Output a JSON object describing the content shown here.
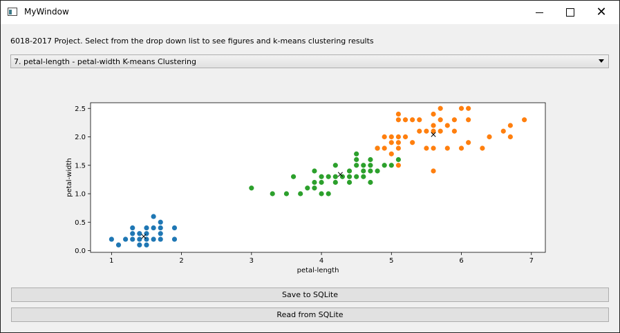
{
  "window": {
    "title": "MyWindow",
    "icon": "app-window-icon"
  },
  "instruction": "6018-2017 Project. Select from the drop down list to see figures and k-means clustering results",
  "dropdown": {
    "selected": "7. petal-length - petal-width K-means Clustering"
  },
  "buttons": {
    "save": "Save to SQLite",
    "read": "Read from SQLite"
  },
  "chart_data": {
    "type": "scatter",
    "xlabel": "petal-length",
    "ylabel": "petal-width",
    "xlim": [
      0.7,
      7.2
    ],
    "ylim": [
      -0.03,
      2.6
    ],
    "xticks": [
      1,
      2,
      3,
      4,
      5,
      6,
      7
    ],
    "yticks": [
      0.0,
      0.5,
      1.0,
      1.5,
      2.0,
      2.5
    ],
    "xtick_labels": [
      "1",
      "2",
      "3",
      "4",
      "5",
      "6",
      "7"
    ],
    "ytick_labels": [
      "0.0",
      "0.5",
      "1.0",
      "1.5",
      "2.0",
      "2.5"
    ],
    "grid": false,
    "series": [
      {
        "color": "#1f77b4",
        "points": [
          [
            1.0,
            0.2
          ],
          [
            1.1,
            0.1
          ],
          [
            1.2,
            0.2
          ],
          [
            1.3,
            0.2
          ],
          [
            1.3,
            0.3
          ],
          [
            1.3,
            0.4
          ],
          [
            1.4,
            0.1
          ],
          [
            1.4,
            0.2
          ],
          [
            1.4,
            0.3
          ],
          [
            1.5,
            0.1
          ],
          [
            1.5,
            0.2
          ],
          [
            1.5,
            0.3
          ],
          [
            1.5,
            0.4
          ],
          [
            1.6,
            0.2
          ],
          [
            1.6,
            0.4
          ],
          [
            1.6,
            0.6
          ],
          [
            1.7,
            0.2
          ],
          [
            1.7,
            0.3
          ],
          [
            1.7,
            0.4
          ],
          [
            1.7,
            0.5
          ],
          [
            1.9,
            0.2
          ],
          [
            1.9,
            0.4
          ]
        ],
        "centroid": [
          1.46,
          0.25
        ]
      },
      {
        "color": "#2ca02c",
        "points": [
          [
            3.0,
            1.1
          ],
          [
            3.3,
            1.0
          ],
          [
            3.5,
            1.0
          ],
          [
            3.6,
            1.3
          ],
          [
            3.7,
            1.0
          ],
          [
            3.8,
            1.1
          ],
          [
            3.9,
            1.1
          ],
          [
            3.9,
            1.2
          ],
          [
            3.9,
            1.4
          ],
          [
            4.0,
            1.0
          ],
          [
            4.0,
            1.2
          ],
          [
            4.0,
            1.3
          ],
          [
            4.1,
            1.0
          ],
          [
            4.1,
            1.3
          ],
          [
            4.2,
            1.2
          ],
          [
            4.2,
            1.3
          ],
          [
            4.2,
            1.5
          ],
          [
            4.3,
            1.3
          ],
          [
            4.4,
            1.2
          ],
          [
            4.4,
            1.3
          ],
          [
            4.4,
            1.4
          ],
          [
            4.5,
            1.3
          ],
          [
            4.5,
            1.5
          ],
          [
            4.5,
            1.6
          ],
          [
            4.5,
            1.7
          ],
          [
            4.6,
            1.3
          ],
          [
            4.6,
            1.4
          ],
          [
            4.6,
            1.5
          ],
          [
            4.7,
            1.2
          ],
          [
            4.7,
            1.4
          ],
          [
            4.7,
            1.5
          ],
          [
            4.7,
            1.6
          ],
          [
            4.8,
            1.4
          ],
          [
            4.8,
            1.8
          ],
          [
            4.9,
            1.5
          ],
          [
            5.0,
            1.5
          ],
          [
            5.1,
            1.6
          ]
        ],
        "centroid": [
          4.27,
          1.34
        ]
      },
      {
        "color": "#ff7f0e",
        "points": [
          [
            4.8,
            1.8
          ],
          [
            4.9,
            1.8
          ],
          [
            4.9,
            2.0
          ],
          [
            5.0,
            1.7
          ],
          [
            5.0,
            1.9
          ],
          [
            5.0,
            2.0
          ],
          [
            5.1,
            1.5
          ],
          [
            5.1,
            1.8
          ],
          [
            5.1,
            1.9
          ],
          [
            5.1,
            2.0
          ],
          [
            5.1,
            2.3
          ],
          [
            5.1,
            2.4
          ],
          [
            5.2,
            2.0
          ],
          [
            5.2,
            2.3
          ],
          [
            5.3,
            1.9
          ],
          [
            5.3,
            2.3
          ],
          [
            5.4,
            2.1
          ],
          [
            5.4,
            2.3
          ],
          [
            5.5,
            1.8
          ],
          [
            5.5,
            2.1
          ],
          [
            5.6,
            1.4
          ],
          [
            5.6,
            1.8
          ],
          [
            5.6,
            2.1
          ],
          [
            5.6,
            2.2
          ],
          [
            5.6,
            2.4
          ],
          [
            5.7,
            2.1
          ],
          [
            5.7,
            2.3
          ],
          [
            5.7,
            2.5
          ],
          [
            5.8,
            1.8
          ],
          [
            5.8,
            2.2
          ],
          [
            5.9,
            2.1
          ],
          [
            5.9,
            2.3
          ],
          [
            6.0,
            1.8
          ],
          [
            6.0,
            2.5
          ],
          [
            6.1,
            1.9
          ],
          [
            6.1,
            2.3
          ],
          [
            6.1,
            2.5
          ],
          [
            6.3,
            1.8
          ],
          [
            6.4,
            2.0
          ],
          [
            6.6,
            2.1
          ],
          [
            6.7,
            2.0
          ],
          [
            6.7,
            2.2
          ],
          [
            6.9,
            2.3
          ]
        ],
        "centroid": [
          5.6,
          2.04
        ]
      }
    ]
  }
}
